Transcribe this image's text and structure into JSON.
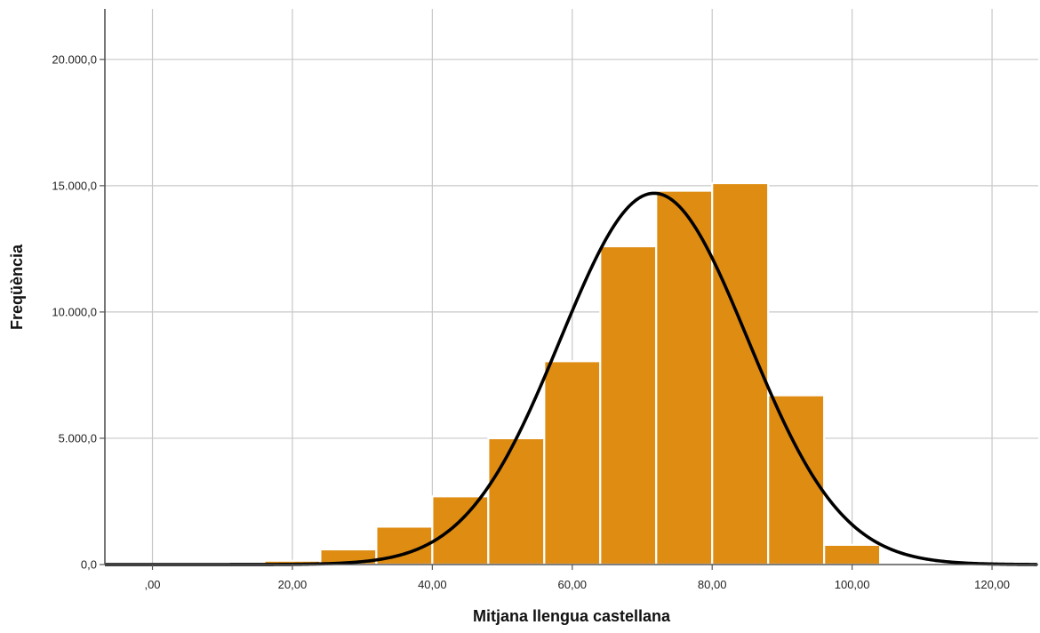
{
  "chart_data": {
    "type": "bar",
    "subtype": "histogram",
    "title": "",
    "xlabel": "Mitjana llengua castellana",
    "ylabel": "Freqüència",
    "xlim": [
      -6.8,
      126.6
    ],
    "ylim": [
      0,
      22000
    ],
    "x_ticks": [
      0,
      20,
      40,
      60,
      80,
      100,
      120
    ],
    "x_tick_labels": [
      ",00",
      "20,00",
      "40,00",
      "60,00",
      "80,00",
      "100,00",
      "120,00"
    ],
    "y_ticks": [
      0,
      5000,
      10000,
      15000,
      20000
    ],
    "y_tick_labels": [
      "0,0",
      "5.000,0",
      "10.000,0",
      "15.000,0",
      "20.000,0"
    ],
    "grid": true,
    "bins": [
      {
        "start": 16.0,
        "end": 24.0,
        "value": 150
      },
      {
        "start": 24.0,
        "end": 32.0,
        "value": 600
      },
      {
        "start": 32.0,
        "end": 40.0,
        "value": 1500
      },
      {
        "start": 40.0,
        "end": 48.0,
        "value": 2700
      },
      {
        "start": 48.0,
        "end": 56.0,
        "value": 5000
      },
      {
        "start": 56.0,
        "end": 64.0,
        "value": 8050
      },
      {
        "start": 64.0,
        "end": 72.0,
        "value": 12600
      },
      {
        "start": 72.0,
        "end": 80.0,
        "value": 14800
      },
      {
        "start": 80.0,
        "end": 88.0,
        "value": 15100
      },
      {
        "start": 88.0,
        "end": 96.0,
        "value": 6700
      },
      {
        "start": 96.0,
        "end": 104.0,
        "value": 780
      }
    ],
    "normal_curve": {
      "mean": 71.7,
      "sd": 13.4,
      "peak": 14700
    },
    "colors": {
      "bar_fill": "#DE8C12",
      "bar_edge": "#ffffff",
      "curve": "#000000",
      "grid": "#C8C8C8",
      "axis": "#555555"
    }
  }
}
